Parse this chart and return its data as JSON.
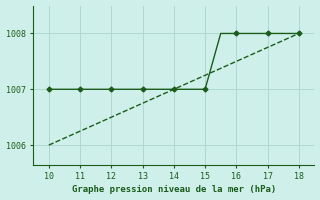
{
  "title": "Graphe pression niveau de la mer (hPa)",
  "xlim": [
    9.5,
    18.5
  ],
  "ylim": [
    1005.65,
    1008.5
  ],
  "xticks": [
    10,
    11,
    12,
    13,
    14,
    15,
    16,
    17,
    18
  ],
  "yticks": [
    1006,
    1007,
    1008
  ],
  "background_color": "#cff0ea",
  "line_color": "#1a5c1a",
  "grid_color": "#b0d8d0",
  "line1_x": [
    10,
    11,
    12,
    13,
    14,
    15,
    15.5,
    16,
    17,
    18
  ],
  "line1_y": [
    1007.0,
    1007.0,
    1007.0,
    1007.0,
    1007.0,
    1007.0,
    1008.0,
    1008.0,
    1008.0,
    1008.0
  ],
  "line1_markers_x": [
    10,
    11,
    12,
    13,
    14,
    15,
    16,
    17,
    18
  ],
  "line1_markers_y": [
    1007.0,
    1007.0,
    1007.0,
    1007.0,
    1007.0,
    1007.0,
    1008.0,
    1008.0,
    1008.0
  ],
  "line2_x": [
    10,
    18
  ],
  "line2_y": [
    1006.0,
    1008.0
  ]
}
